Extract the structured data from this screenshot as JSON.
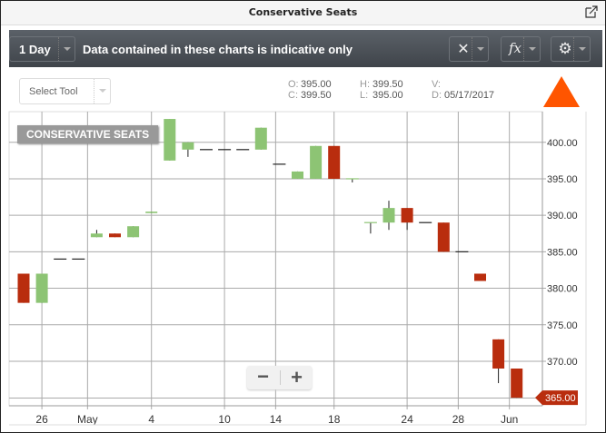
{
  "window": {
    "title": "Conservative Seats",
    "popout_icon": "external-link-icon"
  },
  "toolbar": {
    "period": "1 Day",
    "notice": "Data contained in these charts is indicative only",
    "buttons": [
      {
        "icon": "tools-icon"
      },
      {
        "icon": "function-icon",
        "glyph": "fx"
      },
      {
        "icon": "gear-icon"
      }
    ]
  },
  "select_tool": {
    "label": "Select Tool"
  },
  "ohlc": {
    "o_label": "O:",
    "o": "395.00",
    "h_label": "H:",
    "h": "399.50",
    "v_label": "V:",
    "v": "",
    "c_label": "C:",
    "c": "399.50",
    "l_label": "L:",
    "l": "395.00",
    "d_label": "D:",
    "d": "05/17/2017"
  },
  "indicator": {
    "color": "#ff5500",
    "direction": "up"
  },
  "zoom": {
    "minus": "−",
    "plus": "+"
  },
  "chart_data": {
    "type": "candlestick",
    "title": "CONSERVATIVE SEATS",
    "colors": {
      "up": "#8dc474",
      "down": "#b92d0e",
      "wick": "#222222",
      "last_price_badge": "#b92d0e"
    },
    "grid": true,
    "ylim": [
      363.9,
      404.2
    ],
    "yticks": [
      "400.00",
      "395.00",
      "390.00",
      "385.00",
      "380.00",
      "375.00",
      "370.00"
    ],
    "ytick_values": [
      400,
      395,
      390,
      385,
      380,
      375,
      370
    ],
    "last_price": "365.00",
    "xtick_labels": [
      {
        "label": "26",
        "index": 1
      },
      {
        "label": "May",
        "index": 3.5
      },
      {
        "label": "4",
        "index": 7
      },
      {
        "label": "10",
        "index": 11
      },
      {
        "label": "14",
        "index": 13.8
      },
      {
        "label": "18",
        "index": 17
      },
      {
        "label": "24",
        "index": 21
      },
      {
        "label": "28",
        "index": 23.8
      },
      {
        "label": "Jun",
        "index": 26.6
      }
    ],
    "candles": [
      {
        "o": 382,
        "h": 382,
        "l": 378,
        "c": 378
      },
      {
        "o": 378,
        "h": 382,
        "l": 378,
        "c": 382
      },
      {
        "o": 384,
        "h": 384,
        "l": 384,
        "c": 384
      },
      {
        "o": 384,
        "h": 384,
        "l": 384,
        "c": 384
      },
      {
        "o": 387,
        "h": 388,
        "l": 387,
        "c": 387.5
      },
      {
        "o": 387.5,
        "h": 387.5,
        "l": 387,
        "c": 387
      },
      {
        "o": 387,
        "h": 388.5,
        "l": 387,
        "c": 388.5
      },
      {
        "o": 390.3,
        "h": 390.5,
        "l": 390.3,
        "c": 390.5
      },
      {
        "o": 397.5,
        "h": 403.2,
        "l": 397.5,
        "c": 403.2
      },
      {
        "o": 399,
        "h": 400,
        "l": 398,
        "c": 400
      },
      {
        "o": 399,
        "h": 399,
        "l": 399,
        "c": 399
      },
      {
        "o": 399,
        "h": 399,
        "l": 399,
        "c": 399
      },
      {
        "o": 399,
        "h": 399,
        "l": 399,
        "c": 399
      },
      {
        "o": 399,
        "h": 402,
        "l": 399,
        "c": 402
      },
      {
        "o": 397,
        "h": 397,
        "l": 397,
        "c": 397
      },
      {
        "o": 395,
        "h": 396,
        "l": 395,
        "c": 396
      },
      {
        "o": 395,
        "h": 399.5,
        "l": 395,
        "c": 399.5
      },
      {
        "o": 399.5,
        "h": 399.5,
        "l": 395,
        "c": 395
      },
      {
        "o": 395,
        "h": 395,
        "l": 394.5,
        "c": 395
      },
      {
        "o": 389,
        "h": 389,
        "l": 387.5,
        "c": 389
      },
      {
        "o": 389,
        "h": 392,
        "l": 388,
        "c": 391
      },
      {
        "o": 391,
        "h": 391,
        "l": 388,
        "c": 389
      },
      {
        "o": 389,
        "h": 389,
        "l": 389,
        "c": 389
      },
      {
        "o": 389,
        "h": 389,
        "l": 385,
        "c": 385
      },
      {
        "o": 385,
        "h": 385,
        "l": 385,
        "c": 385
      },
      {
        "o": 382,
        "h": 382,
        "l": 381,
        "c": 381
      },
      {
        "o": 373,
        "h": 373,
        "l": 367,
        "c": 369
      },
      {
        "o": 369,
        "h": 369,
        "l": 365,
        "c": 365
      }
    ]
  }
}
